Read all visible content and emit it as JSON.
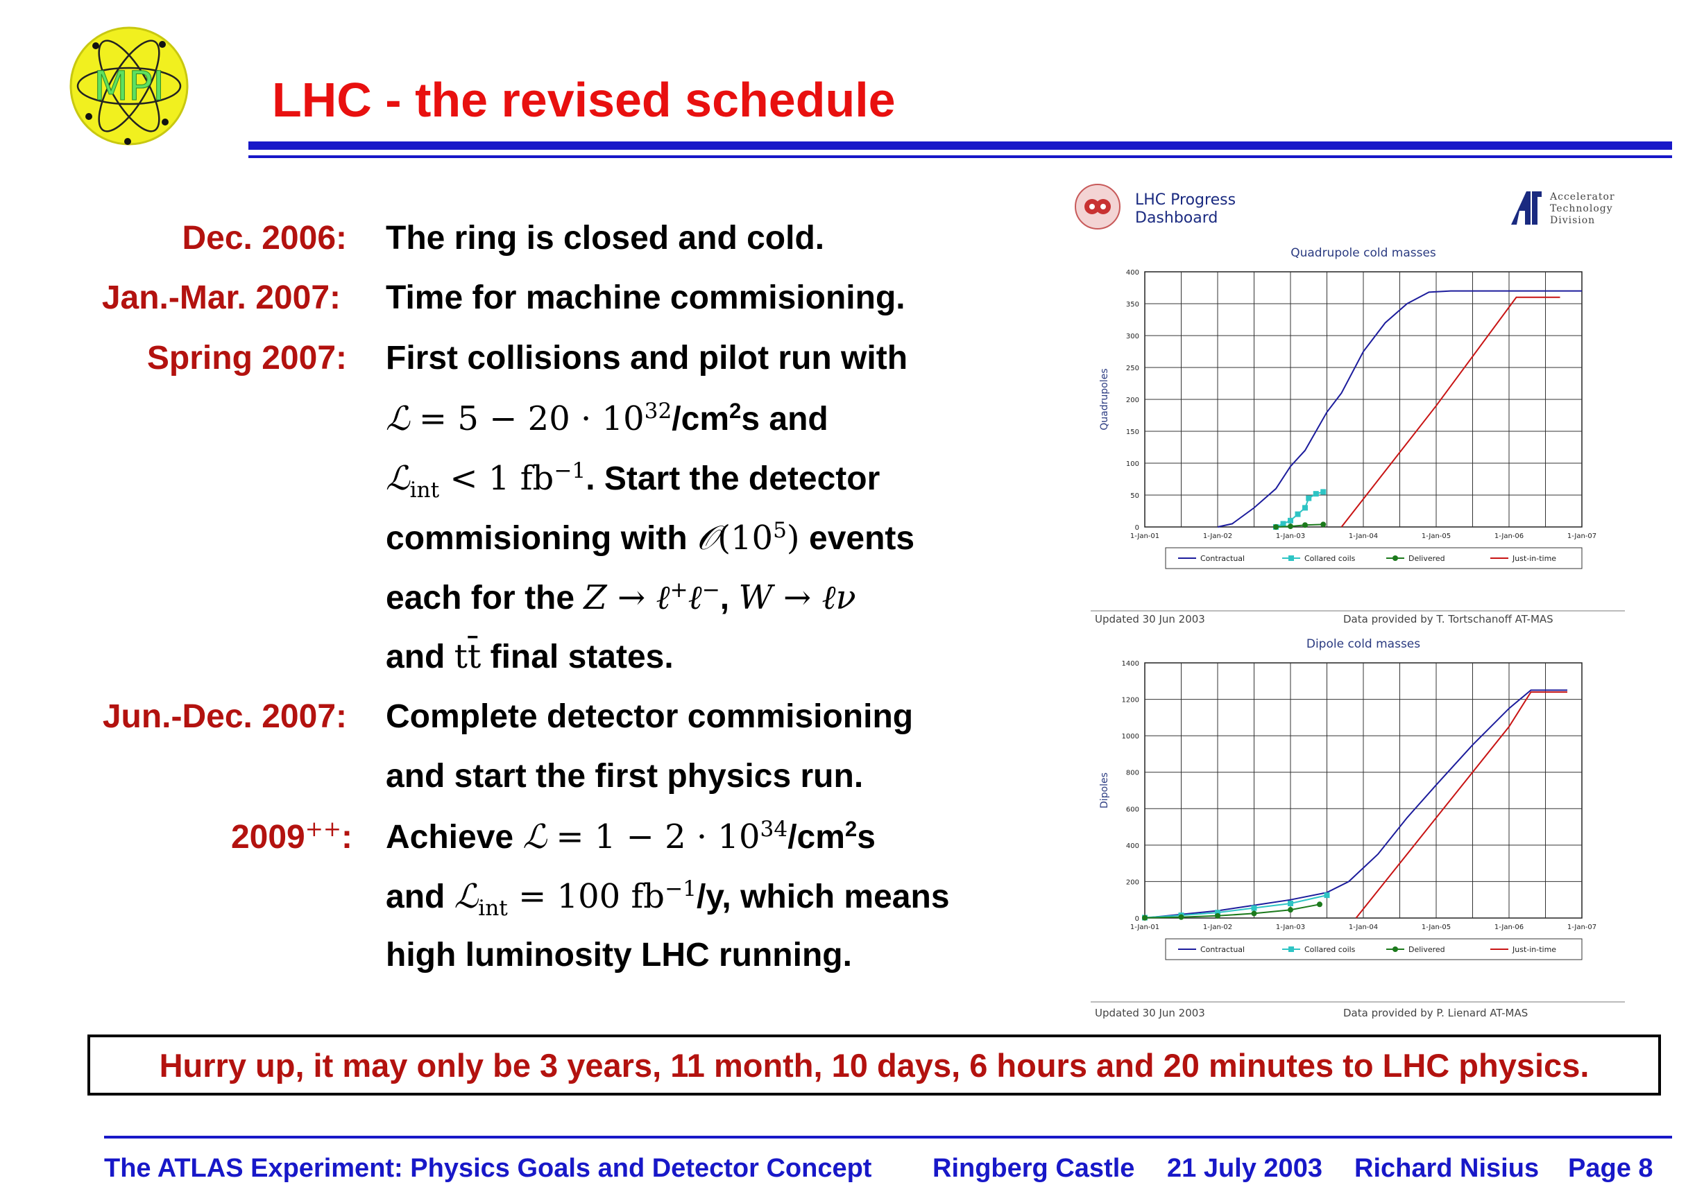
{
  "title": "LHC - the revised schedule",
  "logo_text": "MPI",
  "schedule": [
    {
      "date": "Dec. 2006:",
      "text": "The ring is closed and cold."
    },
    {
      "date": "Jan.-Mar. 2007:",
      "text": "Time for machine commisioning."
    },
    {
      "date": "Spring 2007:",
      "text": "First collisions and pilot run with"
    },
    {
      "date": "Jun.-Dec. 2007:",
      "text": "Complete detector commisioning"
    },
    {
      "date": "2009",
      "date_sup": "++",
      "date_colon": ":"
    }
  ],
  "lines": {
    "l4_a": "= 5 − 20 · 10",
    "l4_sup": "32",
    "l4_b": "/cm",
    "l4_sup2": "2",
    "l4_c": "s and",
    "l5_sub": "int",
    "l5_a": " < 1 fb",
    "l5_sup": "−1",
    "l5_b": ". Start the detector",
    "l6_a": "commisioning with ",
    "l6_b": "(10",
    "l6_sup": "5",
    "l6_c": ")",
    "l6_d": " events",
    "l7_a": "each for the ",
    "l7_b": "Z → ℓ",
    "l7_sup1": "+",
    "l7_c": "ℓ",
    "l7_sup2": "−",
    "l7_d": ", ",
    "l7_e": "W → ℓν",
    "l8_a": "and ",
    "l8_b": "tt̄",
    "l8_c": " final states.",
    "l10": "and start the first physics run.",
    "l11_a": "Achieve ",
    "l11_b": "= 1 − 2 · 10",
    "l11_sup": "34",
    "l11_c": "/cm",
    "l11_sup2": "2",
    "l11_d": "s",
    "l12_a": "and ",
    "l12_sub": "int",
    "l12_b": " = 100 fb",
    "l12_sup": "−1",
    "l12_c": "/y, which means",
    "l13": "high luminosity LHC running."
  },
  "dashboard": {
    "name_line1": "LHC Progress",
    "name_line2": "Dashboard",
    "division_line1": "Accelerator",
    "division_line2": "Technology",
    "division_line3": "Division"
  },
  "chart_data": [
    {
      "type": "line",
      "title": "Quadrupole cold masses",
      "ylabel": "Quadrupoles",
      "ylim": [
        0,
        400
      ],
      "yticks": [
        "0",
        "50",
        "100",
        "150",
        "200",
        "250",
        "300",
        "350",
        "400"
      ],
      "xticks": [
        "1-Jan-01",
        "1-Jan-02",
        "1-Jan-03",
        "1-Jan-04",
        "1-Jan-05",
        "1-Jan-06",
        "1-Jan-07"
      ],
      "xlim": [
        2001,
        2007
      ],
      "legend": [
        "Contractual",
        "Collared coils",
        "Delivered",
        "Just-in-time"
      ],
      "legend_position": "bottom",
      "grid": true,
      "series": [
        {
          "name": "Contractual",
          "color": "#1c1c9c",
          "points": [
            [
              2002.0,
              0
            ],
            [
              2002.2,
              5
            ],
            [
              2002.5,
              30
            ],
            [
              2002.8,
              60
            ],
            [
              2003.0,
              95
            ],
            [
              2003.2,
              120
            ],
            [
              2003.5,
              180
            ],
            [
              2003.7,
              210
            ],
            [
              2004.0,
              275
            ],
            [
              2004.3,
              320
            ],
            [
              2004.6,
              350
            ],
            [
              2004.9,
              368
            ],
            [
              2005.2,
              370
            ],
            [
              2007.0,
              370
            ]
          ]
        },
        {
          "name": "Collared coils",
          "color": "#2ec4c4",
          "marker": "square",
          "points": [
            [
              2002.8,
              0
            ],
            [
              2002.9,
              5
            ],
            [
              2003.0,
              10
            ],
            [
              2003.1,
              20
            ],
            [
              2003.2,
              30
            ],
            [
              2003.25,
              45
            ],
            [
              2003.35,
              52
            ],
            [
              2003.45,
              55
            ]
          ]
        },
        {
          "name": "Delivered",
          "color": "#1c7a1c",
          "marker": "circle",
          "points": [
            [
              2002.8,
              0
            ],
            [
              2003.0,
              1
            ],
            [
              2003.2,
              3
            ],
            [
              2003.45,
              4
            ]
          ]
        },
        {
          "name": "Just-in-time",
          "color": "#c81414",
          "points": [
            [
              2003.7,
              0
            ],
            [
              2005.0,
              190
            ],
            [
              2006.1,
              360
            ],
            [
              2006.7,
              360
            ]
          ]
        }
      ]
    },
    {
      "type": "line",
      "title": "Dipole cold masses",
      "ylabel": "Dipoles",
      "ylim": [
        0,
        1400
      ],
      "yticks": [
        "0",
        "200",
        "400",
        "600",
        "800",
        "1000",
        "1200",
        "1400"
      ],
      "xticks": [
        "1-Jan-01",
        "1-Jan-02",
        "1-Jan-03",
        "1-Jan-04",
        "1-Jan-05",
        "1-Jan-06",
        "1-Jan-07"
      ],
      "xlim": [
        2001,
        2007
      ],
      "legend": [
        "Contractual",
        "Collared coils",
        "Delivered",
        "Just-in-time"
      ],
      "legend_position": "bottom",
      "grid": true,
      "series": [
        {
          "name": "Contractual",
          "color": "#1c1c9c",
          "points": [
            [
              2001.0,
              0
            ],
            [
              2001.5,
              20
            ],
            [
              2002.0,
              40
            ],
            [
              2002.5,
              70
            ],
            [
              2003.0,
              100
            ],
            [
              2003.5,
              140
            ],
            [
              2003.8,
              200
            ],
            [
              2004.2,
              350
            ],
            [
              2004.6,
              550
            ],
            [
              2005.0,
              730
            ],
            [
              2005.5,
              950
            ],
            [
              2006.0,
              1150
            ],
            [
              2006.3,
              1250
            ],
            [
              2006.8,
              1250
            ]
          ]
        },
        {
          "name": "Collared coils",
          "color": "#2ec4c4",
          "marker": "square",
          "points": [
            [
              2001.0,
              2
            ],
            [
              2001.5,
              15
            ],
            [
              2002.0,
              30
            ],
            [
              2002.5,
              55
            ],
            [
              2003.0,
              80
            ],
            [
              2003.5,
              125
            ]
          ]
        },
        {
          "name": "Delivered",
          "color": "#1c7a1c",
          "marker": "circle",
          "points": [
            [
              2001.0,
              1
            ],
            [
              2001.5,
              5
            ],
            [
              2002.0,
              12
            ],
            [
              2002.5,
              25
            ],
            [
              2003.0,
              45
            ],
            [
              2003.4,
              75
            ]
          ]
        },
        {
          "name": "Just-in-time",
          "color": "#c81414",
          "points": [
            [
              2003.9,
              0
            ],
            [
              2005.0,
              550
            ],
            [
              2006.0,
              1050
            ],
            [
              2006.3,
              1240
            ],
            [
              2006.8,
              1240
            ]
          ]
        }
      ]
    }
  ],
  "chart_notes": [
    {
      "updated": "Updated 30 Jun 2003",
      "provider": "Data provided by T. Tortschanoff   AT-MAS"
    },
    {
      "updated": "Updated 30 Jun 2003",
      "provider": "Data provided by  P. Lienard   AT-MAS"
    }
  ],
  "notice": "Hurry up, it may only be 3 years, 11 month, 10 days, 6 hours and 20 minutes to LHC physics.",
  "footer": {
    "talk": "The ATLAS Experiment: Physics Goals and Detector Concept",
    "venue": "Ringberg Castle",
    "date": "21 July 2003",
    "author": "Richard Nisius",
    "page": "Page 8"
  },
  "colors": {
    "title": "#e8100f",
    "dates": "#b3120f",
    "rule": "#1818c8"
  }
}
